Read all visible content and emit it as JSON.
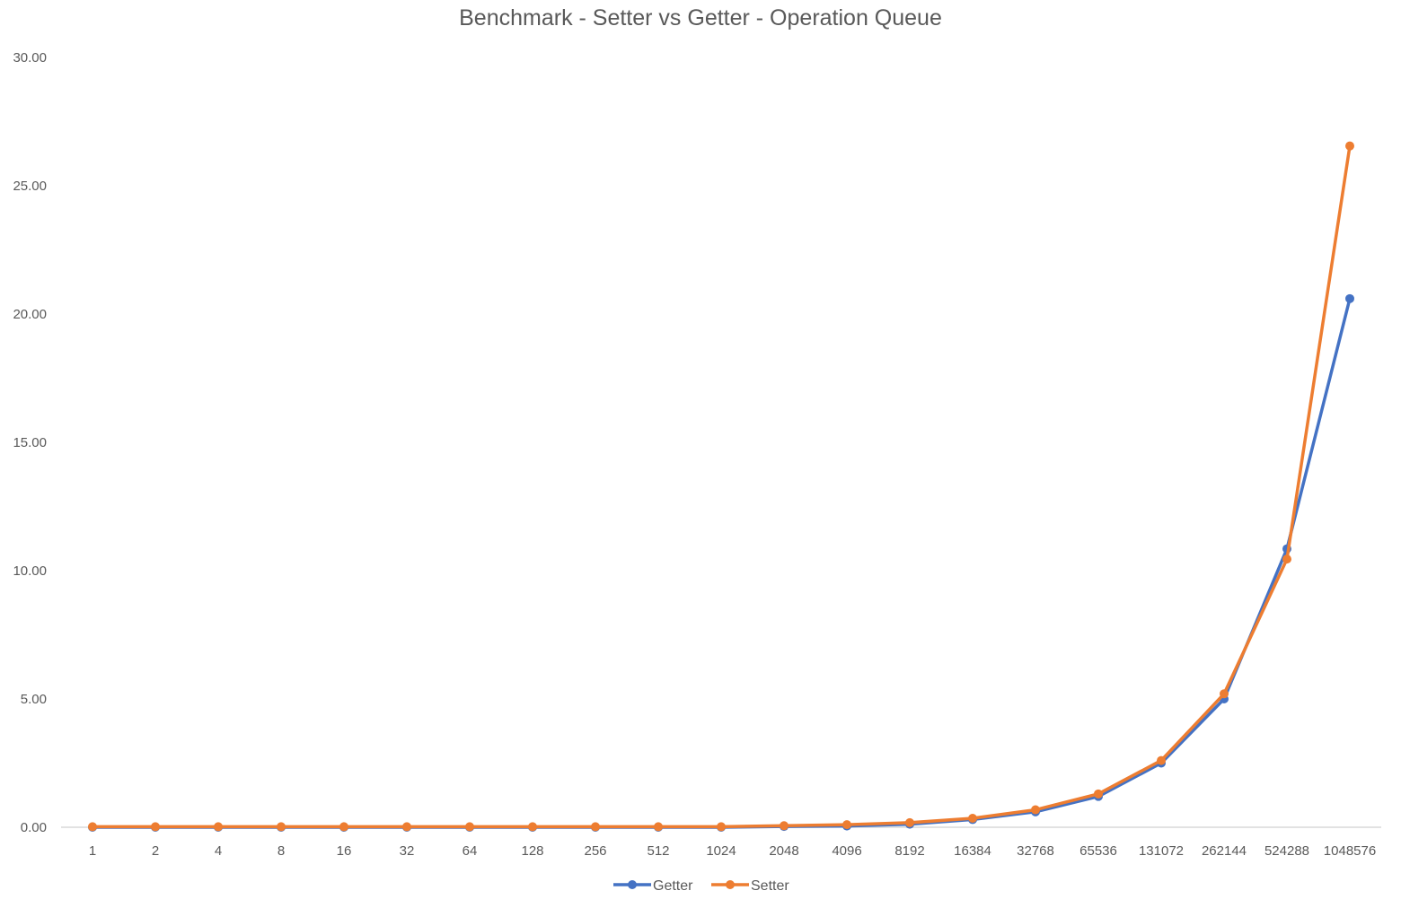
{
  "chart_data": {
    "type": "line",
    "title": "Benchmark - Setter vs Getter - Operation Queue",
    "categories": [
      "1",
      "2",
      "4",
      "8",
      "16",
      "32",
      "64",
      "128",
      "256",
      "512",
      "1024",
      "2048",
      "4096",
      "8192",
      "16384",
      "32768",
      "65536",
      "131072",
      "262144",
      "524288",
      "1048576"
    ],
    "ylim": [
      0,
      30
    ],
    "y_ticks": [
      "0.00",
      "5.00",
      "10.00",
      "15.00",
      "20.00",
      "25.00",
      "30.00"
    ],
    "grid": false,
    "legend_position": "bottom",
    "series": [
      {
        "name": "Getter",
        "color": "#4472C4",
        "values": [
          0.0,
          0.0,
          0.0,
          0.0,
          0.0,
          0.0,
          0.0,
          0.0,
          0.0,
          0.0,
          0.0,
          0.03,
          0.05,
          0.12,
          0.3,
          0.6,
          1.2,
          2.5,
          5.0,
          10.85,
          20.6
        ]
      },
      {
        "name": "Setter",
        "color": "#ED7D31",
        "values": [
          0.02,
          0.02,
          0.02,
          0.02,
          0.02,
          0.02,
          0.02,
          0.02,
          0.02,
          0.02,
          0.02,
          0.06,
          0.1,
          0.18,
          0.35,
          0.68,
          1.3,
          2.6,
          5.2,
          10.45,
          26.55
        ]
      }
    ]
  }
}
